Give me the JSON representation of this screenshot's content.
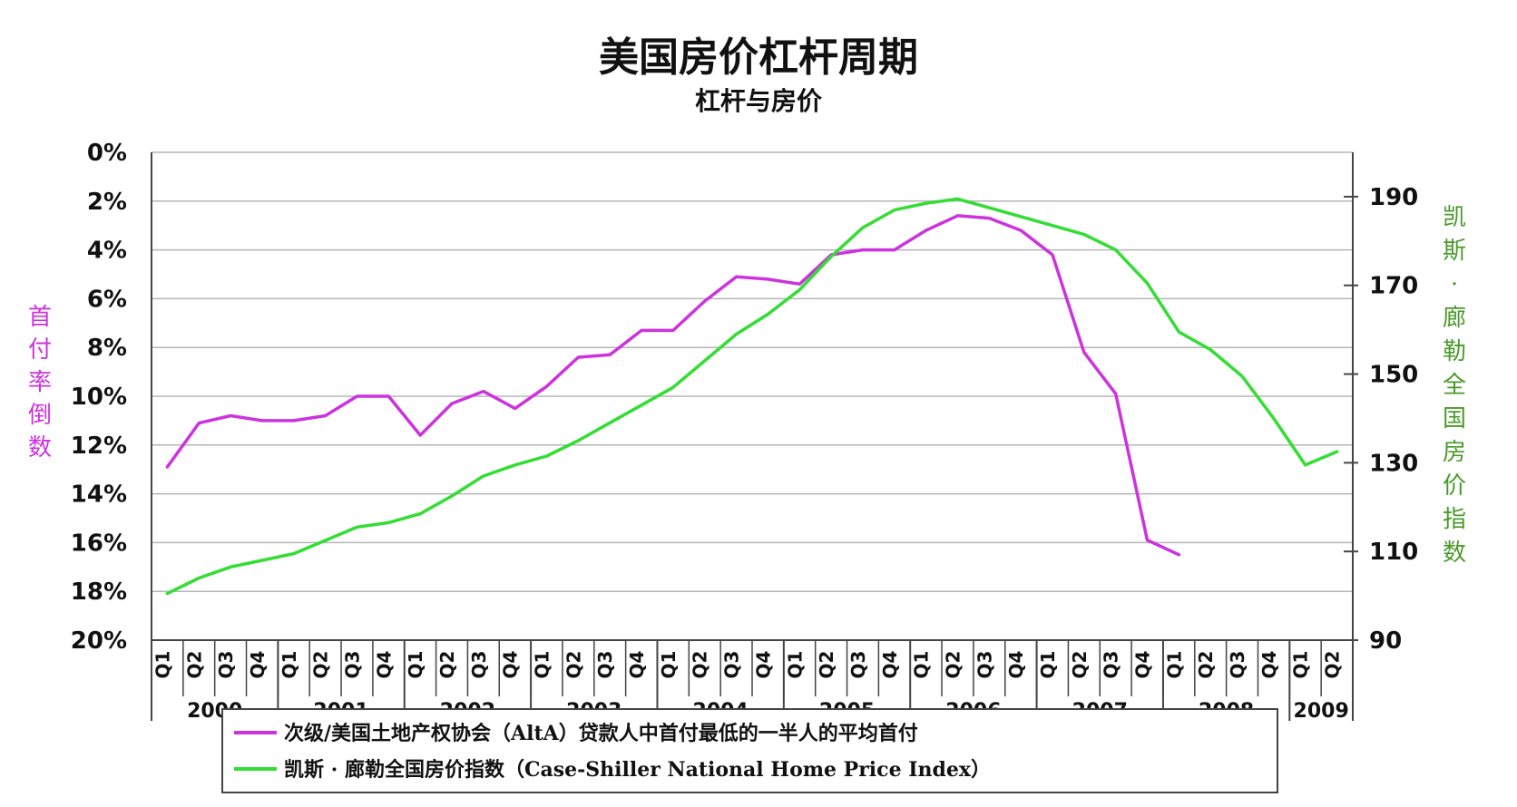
{
  "colors": {
    "alta": "#cc33dd",
    "case_shiller": "#33dd33",
    "grid": "#b5b5b5",
    "axis": "#444444"
  },
  "chart_data": {
    "type": "line",
    "title": "美国房价杠杆周期",
    "subtitle": "杠杆与房价",
    "left_axis_label": "首付率倒数",
    "right_axis_label": "凯斯·廊勒全国房价指数",
    "left_ticks": [
      "0%",
      "2%",
      "4%",
      "6%",
      "8%",
      "10%",
      "12%",
      "14%",
      "16%",
      "18%",
      "20%"
    ],
    "right_ticks": [
      "190",
      "170",
      "150",
      "130",
      "110",
      "90"
    ],
    "left_range": [
      0,
      20
    ],
    "right_range": [
      90,
      200
    ],
    "quarters": [
      "Q1",
      "Q2",
      "Q3",
      "Q4",
      "Q1",
      "Q2",
      "Q3",
      "Q4",
      "Q1",
      "Q2",
      "Q3",
      "Q4",
      "Q1",
      "Q2",
      "Q3",
      "Q4",
      "Q1",
      "Q2",
      "Q3",
      "Q4",
      "Q1",
      "Q2",
      "Q3",
      "Q4",
      "Q1",
      "Q2",
      "Q3",
      "Q4",
      "Q1",
      "Q2",
      "Q3",
      "Q4",
      "Q1",
      "Q2",
      "Q3",
      "Q4",
      "Q1",
      "Q2"
    ],
    "years": [
      {
        "label": "2000",
        "quarters": 4
      },
      {
        "label": "2001",
        "quarters": 4
      },
      {
        "label": "2002",
        "quarters": 4
      },
      {
        "label": "2003",
        "quarters": 4
      },
      {
        "label": "2004",
        "quarters": 4
      },
      {
        "label": "2005",
        "quarters": 4
      },
      {
        "label": "2006",
        "quarters": 4
      },
      {
        "label": "2007",
        "quarters": 4
      },
      {
        "label": "2008",
        "quarters": 4
      },
      {
        "label": "2009",
        "quarters": 2
      }
    ],
    "series": [
      {
        "name": "次级/美国土地产权协会（AltA）贷款人中首付最低的一半人的平均首付",
        "axis": "left",
        "color_key": "alta",
        "values": [
          12.9,
          11.1,
          10.8,
          11.0,
          11.0,
          10.8,
          10.0,
          10.0,
          11.6,
          10.3,
          9.8,
          10.5,
          9.6,
          8.4,
          8.3,
          7.3,
          7.3,
          6.1,
          5.1,
          5.2,
          5.4,
          4.2,
          4.0,
          4.0,
          3.2,
          2.6,
          2.7,
          3.2,
          4.2,
          8.2,
          9.9,
          15.9,
          16.5,
          null,
          null,
          null,
          null,
          null
        ]
      },
      {
        "name": "凯斯·廊勒全国房价指数（Case-Shiller National Home Price Index）",
        "axis": "right",
        "color_key": "case_shiller",
        "values": [
          100.5,
          104.0,
          106.5,
          108.0,
          109.5,
          112.5,
          115.5,
          116.5,
          118.5,
          122.5,
          127.0,
          129.5,
          131.5,
          135.0,
          139.0,
          143.0,
          147.0,
          153.0,
          159.0,
          163.5,
          169.0,
          176.5,
          183.0,
          187.0,
          188.5,
          189.5,
          187.5,
          185.5,
          183.5,
          181.5,
          178.0,
          170.5,
          159.5,
          155.5,
          149.5,
          140.0,
          129.5,
          132.5
        ]
      }
    ],
    "legend": [
      {
        "label": "次级/美国土地产权协会（AltA）贷款人中首付最低的一半人的平均首付",
        "color_key": "alta"
      },
      {
        "label": "凯斯 · 廊勒全国房价指数（Case-Shiller National Home Price Index）",
        "color_key": "case_shiller"
      }
    ],
    "grid": true
  }
}
